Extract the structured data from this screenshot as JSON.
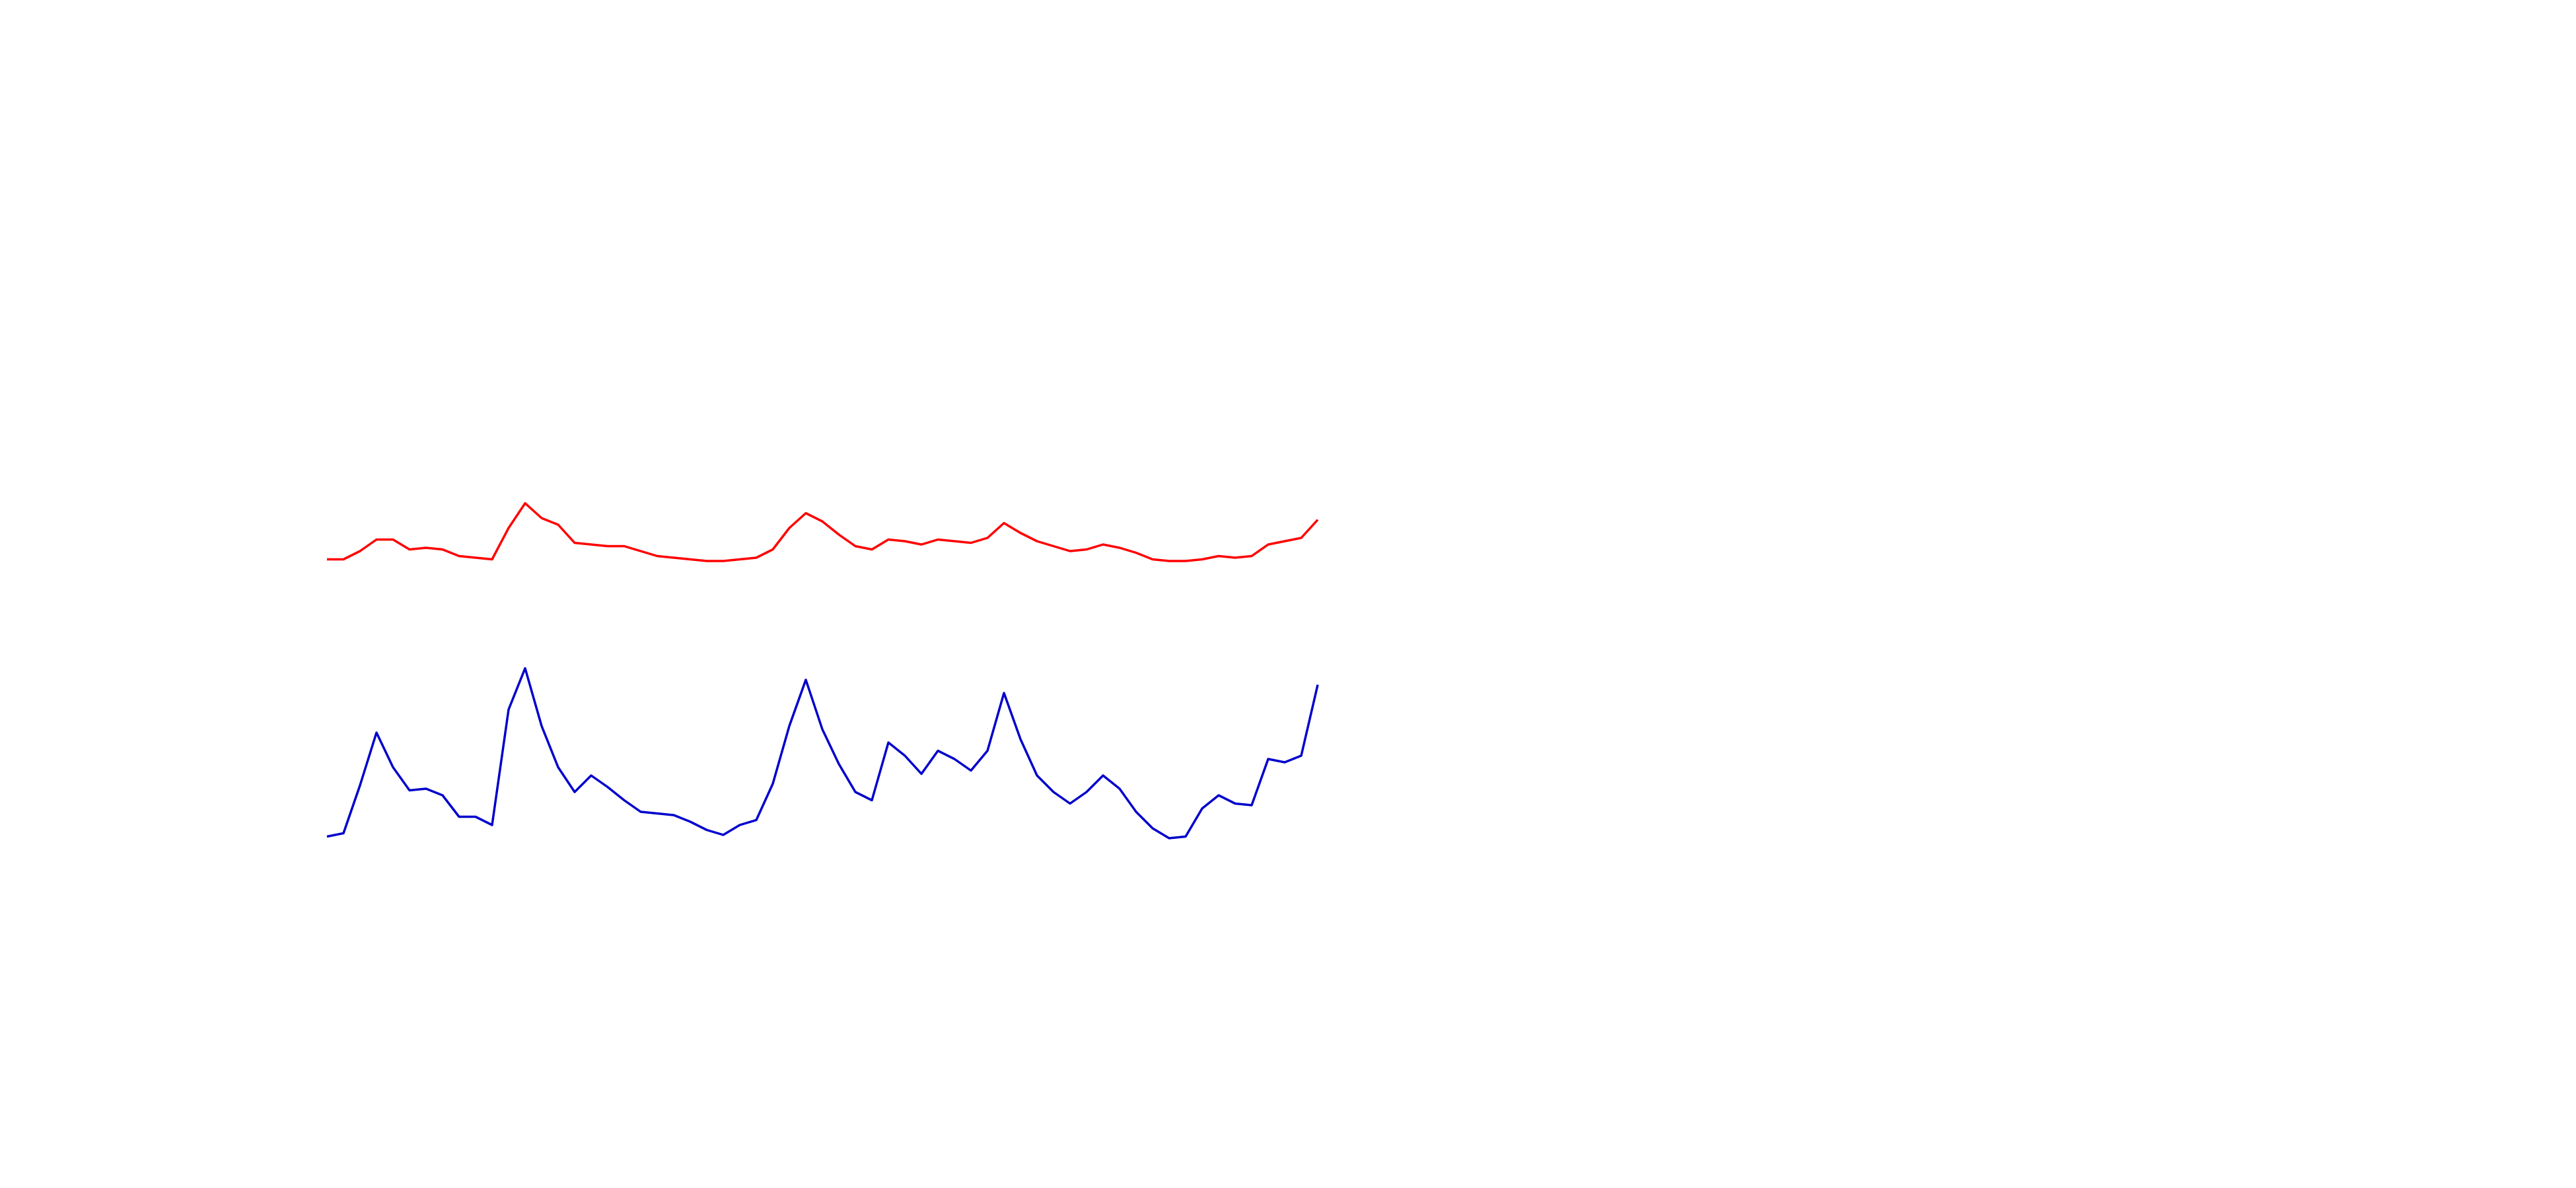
{
  "chart_data": {
    "type": "line",
    "ylim": [
      0,
      720
    ],
    "series": [
      {
        "color": "#ff0000",
        "values": [
          381,
          381,
          386,
          393,
          393,
          387,
          388,
          387,
          383,
          382,
          381,
          400,
          415,
          406,
          402,
          391,
          390,
          389,
          389,
          386,
          383,
          382,
          381,
          380,
          380,
          381,
          382,
          387,
          400,
          409,
          404,
          396,
          389,
          387,
          393,
          392,
          390,
          393,
          392,
          391,
          394,
          403,
          397,
          392,
          389,
          386,
          387,
          390,
          388,
          385,
          381,
          380,
          380,
          381,
          383,
          382,
          383,
          390,
          392,
          394,
          405
        ]
      },
      {
        "color": "#0000cc",
        "values": [
          213,
          215,
          244,
          276,
          255,
          241,
          242,
          238,
          225,
          225,
          220,
          290,
          315,
          280,
          255,
          240,
          250,
          243,
          235,
          228,
          227,
          226,
          222,
          217,
          214,
          220,
          223,
          245,
          280,
          308,
          278,
          257,
          240,
          235,
          270,
          262,
          251,
          265,
          260,
          253,
          265,
          300,
          272,
          250,
          240,
          233,
          240,
          250,
          242,
          228,
          218,
          212,
          213,
          230,
          238,
          233,
          232,
          260,
          258,
          262,
          305
        ]
      }
    ]
  }
}
